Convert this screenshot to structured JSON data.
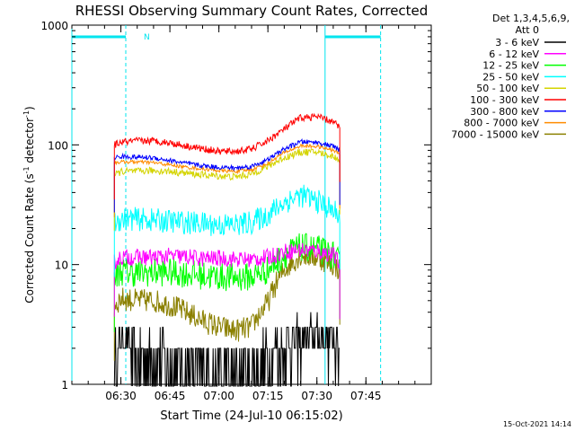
{
  "chart_data": {
    "type": "line",
    "title": "RHESSI Observing Summary Count Rates, Corrected",
    "xlabel": "Start Time (24-Jul-10 06:15:02)",
    "ylabel_main": "Corrected Count Rate (s",
    "ylabel_sup1": "-1",
    "ylabel_mid": " detector",
    "ylabel_sup2": "-1",
    "ylabel_end": ")",
    "ylog": true,
    "xlim": [
      375,
      485
    ],
    "ylim": [
      1,
      1000
    ],
    "x_ticks": [
      {
        "value": 390,
        "label": "06:30"
      },
      {
        "value": 405,
        "label": "06:45"
      },
      {
        "value": 420,
        "label": "07:00"
      },
      {
        "value": 435,
        "label": "07:15"
      },
      {
        "value": 450,
        "label": "07:30"
      },
      {
        "value": 465,
        "label": "07:45"
      }
    ],
    "y_ticks": [
      {
        "value": 1,
        "label": "1"
      },
      {
        "value": 10,
        "label": "10"
      },
      {
        "value": 100,
        "label": "100"
      },
      {
        "value": 1000,
        "label": "1000"
      }
    ],
    "legend_header": [
      "Det 1,3,4,5,6,9,",
      "Att 0"
    ],
    "timestamp": "15-Oct-2021 14:14",
    "annotations": [
      {
        "text": "N",
        "color": "#00e5ee"
      }
    ],
    "markers": {
      "solid_vlines": [
        375,
        452.5
      ],
      "dashed_vlines": [
        391.5,
        469.5
      ],
      "night_bars": [
        [
          375,
          391.5
        ],
        [
          452.5,
          469.5
        ]
      ],
      "color": "#00e5ee"
    },
    "series": [
      {
        "name": "3 - 6 keV",
        "color": "#000000",
        "noise": 0.9,
        "points": [
          [
            388,
            1.5
          ],
          [
            391,
            2.6
          ],
          [
            395,
            1.4
          ],
          [
            400,
            1.8
          ],
          [
            405,
            1.6
          ],
          [
            410,
            1.3
          ],
          [
            415,
            1.5
          ],
          [
            420,
            1.2
          ],
          [
            425,
            1.2
          ],
          [
            430,
            1.3
          ],
          [
            435,
            1.6
          ],
          [
            440,
            2.2
          ],
          [
            445,
            2.5
          ],
          [
            450,
            2.6
          ],
          [
            455,
            2.4
          ],
          [
            457,
            1.8
          ]
        ]
      },
      {
        "name": "6 - 12 keV",
        "color": "#ff00ff",
        "noise": 0.07,
        "points": [
          [
            388,
            10.5
          ],
          [
            390,
            11.5
          ],
          [
            395,
            11.5
          ],
          [
            400,
            11.5
          ],
          [
            405,
            11.8
          ],
          [
            410,
            11.6
          ],
          [
            415,
            11.2
          ],
          [
            420,
            11.3
          ],
          [
            425,
            11.1
          ],
          [
            430,
            11.0
          ],
          [
            435,
            11.5
          ],
          [
            440,
            12.8
          ],
          [
            445,
            13.3
          ],
          [
            450,
            13.0
          ],
          [
            455,
            12.0
          ],
          [
            457,
            10.0
          ]
        ]
      },
      {
        "name": "12 - 25 keV",
        "color": "#00ff00",
        "noise": 0.12,
        "points": [
          [
            388,
            7.8
          ],
          [
            390,
            8.8
          ],
          [
            395,
            8.5
          ],
          [
            400,
            8.6
          ],
          [
            405,
            8.6
          ],
          [
            410,
            8.4
          ],
          [
            415,
            8.1
          ],
          [
            420,
            7.9
          ],
          [
            425,
            7.8
          ],
          [
            430,
            7.9
          ],
          [
            435,
            9.0
          ],
          [
            440,
            12.0
          ],
          [
            445,
            14.0
          ],
          [
            450,
            13.5
          ],
          [
            455,
            12.0
          ],
          [
            457,
            10.0
          ]
        ]
      },
      {
        "name": "25 - 50 keV",
        "color": "#00ffff",
        "noise": 0.1,
        "points": [
          [
            388,
            22.5
          ],
          [
            390,
            24.0
          ],
          [
            395,
            24.0
          ],
          [
            400,
            23.5
          ],
          [
            405,
            23.0
          ],
          [
            410,
            22.5
          ],
          [
            415,
            22.0
          ],
          [
            420,
            21.5
          ],
          [
            425,
            21.5
          ],
          [
            430,
            22.5
          ],
          [
            435,
            26.0
          ],
          [
            440,
            33.0
          ],
          [
            445,
            38.0
          ],
          [
            450,
            34.0
          ],
          [
            455,
            28.0
          ],
          [
            457,
            26.0
          ]
        ]
      },
      {
        "name": "50 - 100 keV",
        "color": "#d4d400",
        "noise": 0.03,
        "points": [
          [
            388,
            55
          ],
          [
            390,
            60
          ],
          [
            395,
            60
          ],
          [
            400,
            61
          ],
          [
            405,
            60
          ],
          [
            410,
            58
          ],
          [
            415,
            56
          ],
          [
            420,
            55
          ],
          [
            425,
            54
          ],
          [
            430,
            57
          ],
          [
            435,
            66
          ],
          [
            440,
            78
          ],
          [
            445,
            87
          ],
          [
            450,
            87
          ],
          [
            455,
            80
          ],
          [
            457,
            75
          ]
        ]
      },
      {
        "name": "100 - 300 keV",
        "color": "#ff0000",
        "noise": 0.03,
        "points": [
          [
            388,
            100
          ],
          [
            390,
            105
          ],
          [
            395,
            108
          ],
          [
            400,
            108
          ],
          [
            405,
            104
          ],
          [
            410,
            98
          ],
          [
            415,
            93
          ],
          [
            420,
            88
          ],
          [
            425,
            88
          ],
          [
            430,
            92
          ],
          [
            435,
            108
          ],
          [
            440,
            135
          ],
          [
            445,
            168
          ],
          [
            450,
            172
          ],
          [
            455,
            155
          ],
          [
            457,
            140
          ]
        ]
      },
      {
        "name": "300 - 800 keV",
        "color": "#0000ff",
        "noise": 0.02,
        "points": [
          [
            388,
            78
          ],
          [
            390,
            80
          ],
          [
            395,
            79
          ],
          [
            400,
            78
          ],
          [
            405,
            74
          ],
          [
            410,
            70
          ],
          [
            415,
            67
          ],
          [
            420,
            65
          ],
          [
            425,
            64
          ],
          [
            430,
            66
          ],
          [
            435,
            75
          ],
          [
            440,
            92
          ],
          [
            445,
            106
          ],
          [
            450,
            105
          ],
          [
            455,
            97
          ],
          [
            457,
            90
          ]
        ]
      },
      {
        "name": "800 - 7000 keV",
        "color": "#ff8c00",
        "noise": 0.015,
        "points": [
          [
            388,
            71
          ],
          [
            390,
            72
          ],
          [
            395,
            72
          ],
          [
            400,
            71
          ],
          [
            405,
            68
          ],
          [
            410,
            65
          ],
          [
            415,
            63
          ],
          [
            420,
            61
          ],
          [
            425,
            60
          ],
          [
            430,
            62
          ],
          [
            435,
            70
          ],
          [
            440,
            86
          ],
          [
            445,
            98
          ],
          [
            450,
            97
          ],
          [
            455,
            90
          ],
          [
            457,
            84
          ]
        ]
      },
      {
        "name": "7000 - 15000 keV",
        "color": "#8b8000",
        "noise": 0.1,
        "points": [
          [
            388,
            4.5
          ],
          [
            390,
            5.2
          ],
          [
            395,
            5.0
          ],
          [
            400,
            5.0
          ],
          [
            405,
            4.6
          ],
          [
            410,
            4.0
          ],
          [
            415,
            3.4
          ],
          [
            420,
            3.0
          ],
          [
            425,
            2.8
          ],
          [
            430,
            3.0
          ],
          [
            435,
            4.8
          ],
          [
            440,
            9.0
          ],
          [
            445,
            12.0
          ],
          [
            450,
            11.5
          ],
          [
            455,
            10.0
          ],
          [
            457,
            9.0
          ]
        ]
      }
    ]
  }
}
